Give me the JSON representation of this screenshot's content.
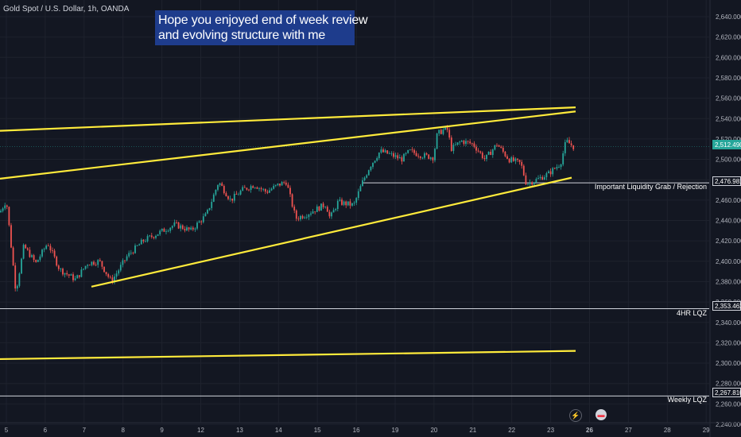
{
  "symbol_label": "Gold Spot / U.S. Dollar, 1h, OANDA",
  "callout": {
    "line1": "Hope you enjoyed end of week review",
    "line2": "and evolving structure with me"
  },
  "annotations": {
    "liquidity": "Important Liquidity Grab / Rejection",
    "lqz_4hr": "4HR LQZ",
    "lqz_weekly": "Weekly LQZ"
  },
  "price_tags": {
    "current": "2,512.490",
    "liquidity": "2,476.981",
    "lqz_4hr": "2,353.462",
    "lqz_weekly": "2,267.810"
  },
  "event_icons": [
    "lightning-icon",
    "flag-icon"
  ],
  "colors": {
    "background": "#131722",
    "up_candle": "#26a69a",
    "down_candle": "#ef5350",
    "trendline": "#ffeb3b",
    "callout_bg": "#1e3c8c"
  },
  "chart_data": {
    "type": "candlestick",
    "ylim": [
      2240,
      2650
    ],
    "y_ticks": [
      "2,640.000",
      "2,620.000",
      "2,600.000",
      "2,580.000",
      "2,560.000",
      "2,540.000",
      "2,520.000",
      "2,500.000",
      "2,480.000",
      "2,460.000",
      "2,440.000",
      "2,420.000",
      "2,400.000",
      "2,380.000",
      "2,360.000",
      "2,340.000",
      "2,320.000",
      "2,300.000",
      "2,280.000",
      "2,260.000",
      "2,240.000"
    ],
    "x_ticks": [
      "5",
      "6",
      "7",
      "8",
      "9",
      "12",
      "13",
      "14",
      "15",
      "16",
      "19",
      "20",
      "21",
      "22",
      "23",
      "26",
      "27",
      "28",
      "29"
    ],
    "x_ticks_bold": [
      "26"
    ],
    "path_points": [
      [
        0,
        2448
      ],
      [
        8,
        2460
      ],
      [
        20,
        2370
      ],
      [
        30,
        2415
      ],
      [
        45,
        2398
      ],
      [
        60,
        2418
      ],
      [
        75,
        2392
      ],
      [
        95,
        2382
      ],
      [
        110,
        2398
      ],
      [
        125,
        2400
      ],
      [
        140,
        2380
      ],
      [
        160,
        2405
      ],
      [
        180,
        2420
      ],
      [
        200,
        2428
      ],
      [
        220,
        2436
      ],
      [
        240,
        2430
      ],
      [
        260,
        2446
      ],
      [
        275,
        2478
      ],
      [
        290,
        2460
      ],
      [
        305,
        2470
      ],
      [
        320,
        2475
      ],
      [
        335,
        2468
      ],
      [
        350,
        2475
      ],
      [
        360,
        2478
      ],
      [
        372,
        2442
      ],
      [
        385,
        2446
      ],
      [
        400,
        2452
      ],
      [
        410,
        2456
      ],
      [
        415,
        2442
      ],
      [
        425,
        2458
      ],
      [
        445,
        2455
      ],
      [
        455,
        2476
      ],
      [
        465,
        2493
      ],
      [
        478,
        2508
      ],
      [
        490,
        2505
      ],
      [
        505,
        2500
      ],
      [
        515,
        2508
      ],
      [
        530,
        2504
      ],
      [
        545,
        2502
      ],
      [
        550,
        2525
      ],
      [
        562,
        2531
      ],
      [
        568,
        2510
      ],
      [
        580,
        2518
      ],
      [
        595,
        2515
      ],
      [
        610,
        2500
      ],
      [
        625,
        2515
      ],
      [
        640,
        2500
      ],
      [
        655,
        2496
      ],
      [
        662,
        2476
      ],
      [
        675,
        2480
      ],
      [
        690,
        2486
      ],
      [
        705,
        2496
      ],
      [
        712,
        2518
      ],
      [
        722,
        2512
      ]
    ],
    "horizontal_levels": [
      {
        "price": 2476.981,
        "x_from": 455
      },
      {
        "price": 2353.462,
        "x_from": 0
      },
      {
        "price": 2267.81,
        "x_from": 0
      }
    ],
    "trendlines": [
      {
        "from": [
          0,
          2528
        ],
        "to": [
          724,
          2551
        ]
      },
      {
        "from": [
          0,
          2481
        ],
        "to": [
          724,
          2547
        ]
      },
      {
        "from": [
          115,
          2375
        ],
        "to": [
          719,
          2482
        ]
      },
      {
        "from": [
          0,
          2304
        ],
        "to": [
          724,
          2312
        ]
      }
    ],
    "current_price": 2512.49,
    "grid": true
  }
}
